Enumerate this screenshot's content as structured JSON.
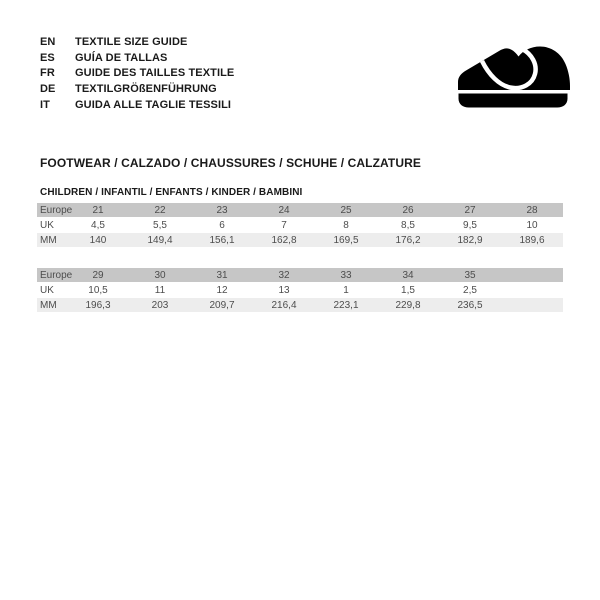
{
  "header": {
    "languages": [
      {
        "code": "EN",
        "title": "TEXTILE SIZE GUIDE"
      },
      {
        "code": "ES",
        "title": "GUÍA DE TALLAS"
      },
      {
        "code": "FR",
        "title": "GUIDE DES TAILLES TEXTILE"
      },
      {
        "code": "DE",
        "title": "TEXTILGRÖßENFÜHRUNG"
      },
      {
        "code": "IT",
        "title": "GUIDA ALLE TAGLIE TESSILI"
      }
    ],
    "icon": "children-shoe-icon"
  },
  "section": {
    "title": "FOOTWEAR / CALZADO / CHAUSSURES / SCHUHE / CALZATURE",
    "subtitle": "CHILDREN / INFANTIL / ENFANTS / KINDER / BAMBINI"
  },
  "size_tables": [
    {
      "rows": [
        {
          "label": "Europe",
          "values": [
            "21",
            "22",
            "23",
            "24",
            "25",
            "26",
            "27",
            "28"
          ]
        },
        {
          "label": "UK",
          "values": [
            "4,5",
            "5,5",
            "6",
            "7",
            "8",
            "8,5",
            "9,5",
            "10"
          ]
        },
        {
          "label": "MM",
          "values": [
            "140",
            "149,4",
            "156,1",
            "162,8",
            "169,5",
            "176,2",
            "182,9",
            "189,6"
          ]
        }
      ]
    },
    {
      "rows": [
        {
          "label": "Europe",
          "values": [
            "29",
            "30",
            "31",
            "32",
            "33",
            "34",
            "35",
            ""
          ]
        },
        {
          "label": "UK",
          "values": [
            "10,5",
            "11",
            "12",
            "13",
            "1",
            "1,5",
            "2,5",
            ""
          ]
        },
        {
          "label": "MM",
          "values": [
            "196,3",
            "203",
            "209,7",
            "216,4",
            "223,1",
            "229,8",
            "236,5",
            ""
          ]
        }
      ]
    }
  ],
  "colors": {
    "page_bg": "#ffffff",
    "ink": "#1a1a1a",
    "table_text": "#4d4d4d",
    "band_dark": "#c6c6c6",
    "band_light": "#ededed",
    "icon": "#000000"
  }
}
